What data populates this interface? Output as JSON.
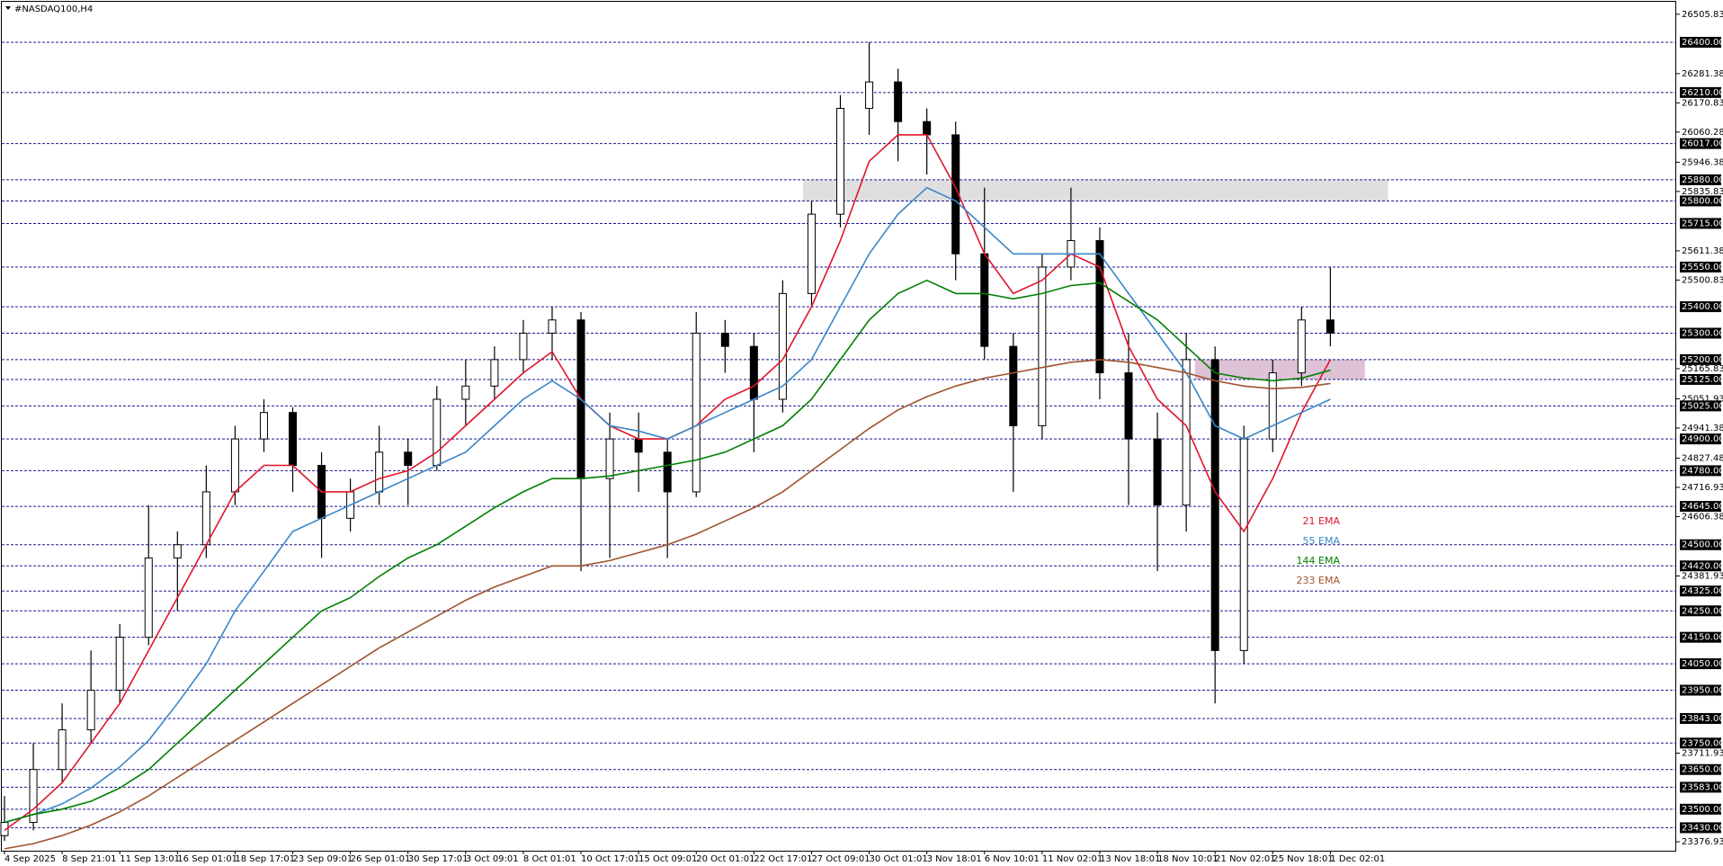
{
  "chart_data": {
    "type": "candlestick",
    "title": "#NASDAQ100,H4",
    "categories": [
      "4 Sep 2025",
      null,
      "8 Sep 21:01",
      null,
      "11 Sep 13:01",
      null,
      "16 Sep 01:01",
      null,
      "18 Sep 17:01",
      null,
      "23 Sep 09:01",
      null,
      "26 Sep 01:01",
      null,
      "30 Sep 17:01",
      null,
      "3 Oct 09:01",
      null,
      "8 Oct 01:01",
      null,
      "10 Oct 17:01",
      null,
      "15 Oct 09:01",
      null,
      "20 Oct 01:01",
      null,
      "22 Oct 17:01",
      null,
      "27 Oct 09:01",
      null,
      "30 Oct 01:01",
      null,
      "3 Nov 18:01",
      null,
      "6 Nov 10:01",
      null,
      "11 Nov 02:01",
      null,
      "13 Nov 18:01",
      null,
      "18 Nov 10:01",
      null,
      "21 Nov 02:01",
      null,
      "25 Nov 18:01",
      null,
      "1 Dec 02:01"
    ],
    "candles": [
      [
        23400,
        23550,
        23380,
        23450
      ],
      [
        23450,
        23750,
        23420,
        23650
      ],
      [
        23650,
        23900,
        23600,
        23800
      ],
      [
        23800,
        24100,
        23750,
        23950
      ],
      [
        23950,
        24200,
        23900,
        24150
      ],
      [
        24150,
        24650,
        24120,
        24450
      ],
      [
        24450,
        24550,
        24250,
        24500
      ],
      [
        24500,
        24800,
        24450,
        24700
      ],
      [
        24700,
        24950,
        24650,
        24900
      ],
      [
        24900,
        25050,
        24850,
        25000
      ],
      [
        25000,
        25020,
        24700,
        24800
      ],
      [
        24800,
        24850,
        24450,
        24600
      ],
      [
        24600,
        24750,
        24550,
        24700
      ],
      [
        24700,
        24950,
        24650,
        24850
      ],
      [
        24850,
        24900,
        24650,
        24800
      ],
      [
        24800,
        25100,
        24780,
        25050
      ],
      [
        25050,
        25200,
        24950,
        25100
      ],
      [
        25100,
        25250,
        25050,
        25200
      ],
      [
        25200,
        25350,
        25150,
        25300
      ],
      [
        25300,
        25400,
        25200,
        25350
      ],
      [
        25350,
        25380,
        24400,
        24750
      ],
      [
        24750,
        25000,
        24450,
        24900
      ],
      [
        24900,
        25000,
        24700,
        24850
      ],
      [
        24850,
        24900,
        24450,
        24700
      ],
      [
        24700,
        25380,
        24680,
        25300
      ],
      [
        25300,
        25350,
        25150,
        25250
      ],
      [
        25250,
        25300,
        24850,
        25050
      ],
      [
        25050,
        25500,
        25000,
        25450
      ],
      [
        25450,
        25800,
        25400,
        25750
      ],
      [
        25750,
        26200,
        25700,
        26150
      ],
      [
        26150,
        26400,
        26050,
        26250
      ],
      [
        26250,
        26300,
        25950,
        26100
      ],
      [
        26100,
        26150,
        25900,
        26050
      ],
      [
        26050,
        26100,
        25500,
        25600
      ],
      [
        25600,
        25850,
        25200,
        25250
      ],
      [
        25250,
        25300,
        24700,
        24950
      ],
      [
        24950,
        25600,
        24900,
        25550
      ],
      [
        25550,
        25850,
        25500,
        25650
      ],
      [
        25650,
        25700,
        25050,
        25150
      ],
      [
        25150,
        25300,
        24650,
        24900
      ],
      [
        24900,
        25000,
        24400,
        24650
      ],
      [
        24650,
        25300,
        24550,
        25200
      ],
      [
        25200,
        25250,
        23900,
        24100
      ],
      [
        24100,
        24950,
        24050,
        24900
      ],
      [
        24900,
        25200,
        24850,
        25150
      ],
      [
        25150,
        25400,
        25100,
        25350
      ],
      [
        25350,
        25550,
        25250,
        25300
      ]
    ],
    "series": [
      {
        "name": "21 EMA",
        "color": "#e0142d",
        "values": [
          23420,
          23500,
          23600,
          23750,
          23900,
          24100,
          24300,
          24500,
          24700,
          24800,
          24800,
          24700,
          24700,
          24750,
          24780,
          24850,
          24950,
          25050,
          25150,
          25230,
          25050,
          24950,
          24900,
          24900,
          24950,
          25050,
          25100,
          25200,
          25400,
          25650,
          25950,
          26050,
          26050,
          25850,
          25600,
          25450,
          25500,
          25600,
          25550,
          25250,
          25050,
          24950,
          24700,
          24550,
          24750,
          25000,
          25200
        ]
      },
      {
        "name": "55 EMA",
        "color": "#3a86c8",
        "values": [
          23450,
          23480,
          23520,
          23580,
          23660,
          23760,
          23900,
          24050,
          24250,
          24400,
          24550,
          24600,
          24650,
          24700,
          24750,
          24800,
          24850,
          24950,
          25050,
          25120,
          25050,
          24950,
          24930,
          24900,
          24950,
          25000,
          25050,
          25100,
          25200,
          25400,
          25600,
          25750,
          25850,
          25800,
          25700,
          25600,
          25600,
          25600,
          25600,
          25450,
          25300,
          25150,
          24950,
          24900,
          24950,
          25000,
          25050
        ]
      },
      {
        "name": "144 EMA",
        "color": "#008000",
        "values": [
          23450,
          23480,
          23500,
          23530,
          23580,
          23650,
          23750,
          23850,
          23950,
          24050,
          24150,
          24250,
          24300,
          24380,
          24450,
          24500,
          24570,
          24640,
          24700,
          24750,
          24750,
          24760,
          24780,
          24800,
          24820,
          24850,
          24900,
          24950,
          25050,
          25200,
          25350,
          25450,
          25500,
          25450,
          25450,
          25430,
          25450,
          25480,
          25490,
          25420,
          25350,
          25250,
          25150,
          25130,
          25120,
          25130,
          25160
        ]
      },
      {
        "name": "233 EMA",
        "color": "#a0522d",
        "values": [
          23350,
          23370,
          23400,
          23440,
          23490,
          23550,
          23620,
          23690,
          23760,
          23830,
          23900,
          23970,
          24040,
          24110,
          24170,
          24230,
          24290,
          24340,
          24380,
          24420,
          24420,
          24440,
          24470,
          24500,
          24540,
          24590,
          24640,
          24700,
          24780,
          24860,
          24940,
          25010,
          25060,
          25100,
          25130,
          25150,
          25170,
          25190,
          25200,
          25190,
          25170,
          25150,
          25120,
          25100,
          25090,
          25095,
          25110
        ]
      }
    ],
    "levels": [
      {
        "value": 26400,
        "label": "26400.00"
      },
      {
        "value": 26210,
        "label": "26210.00"
      },
      {
        "value": 26017,
        "label": "26017.00"
      },
      {
        "value": 25880,
        "label": "25880.00"
      },
      {
        "value": 25800,
        "label": "25800.00"
      },
      {
        "value": 25715,
        "label": "25715.00"
      },
      {
        "value": 25550,
        "label": "25550.00"
      },
      {
        "value": 25400,
        "label": "25400.00"
      },
      {
        "value": 25300,
        "label": "25300.00"
      },
      {
        "value": 25200,
        "label": "25200.00"
      },
      {
        "value": 25125,
        "label": "25125.00"
      },
      {
        "value": 25025,
        "label": "25025.00"
      },
      {
        "value": 24900,
        "label": "24900.00"
      },
      {
        "value": 24780,
        "label": "24780.00"
      },
      {
        "value": 24645,
        "label": "24645.00"
      },
      {
        "value": 24500,
        "label": "24500.00"
      },
      {
        "value": 24420,
        "label": "24420.00"
      },
      {
        "value": 24325,
        "label": "24325.00"
      },
      {
        "value": 24250,
        "label": "24250.00"
      },
      {
        "value": 24150,
        "label": "24150.00"
      },
      {
        "value": 24050,
        "label": "24050.00"
      },
      {
        "value": 23950,
        "label": "23950.00"
      },
      {
        "value": 23843,
        "label": "23843.00"
      },
      {
        "value": 23750,
        "label": "23750.00"
      },
      {
        "value": 23650,
        "label": "23650.00"
      },
      {
        "value": 23583,
        "label": "23583.00"
      },
      {
        "value": 23500,
        "label": "23500.00"
      },
      {
        "value": 23430,
        "label": "23430.00"
      }
    ],
    "level_color": "#1a1a8c",
    "yticks": [
      26505.83,
      26281.38,
      26170.83,
      26060.28,
      25946.38,
      25835.83,
      25611.38,
      25500.83,
      25165.83,
      25051.93,
      24941.38,
      24827.48,
      24716.93,
      24606.38,
      24381.93,
      23711.93,
      23376.93
    ],
    "ylim": [
      23343,
      26553
    ],
    "xlim": [
      0,
      58
    ],
    "zones": [
      {
        "range": [
          25800,
          25880
        ],
        "x": [
          27.7,
          48
        ],
        "color": "#d9d9d9"
      },
      {
        "range": [
          25125,
          25200
        ],
        "x": [
          41.3,
          47.2
        ],
        "color": "#d8b8d0"
      }
    ]
  }
}
